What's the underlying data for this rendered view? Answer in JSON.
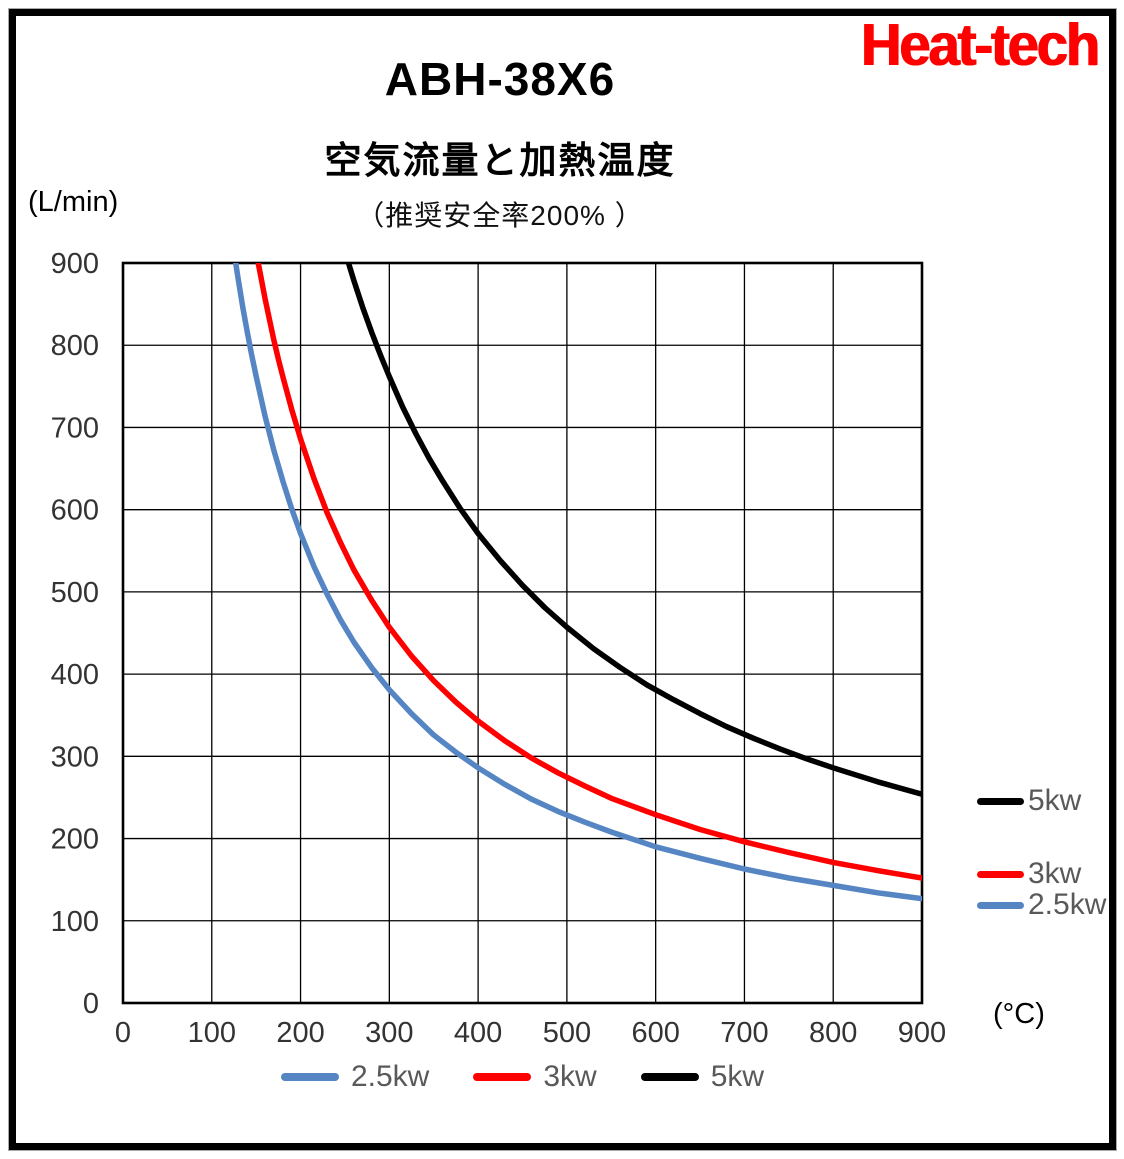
{
  "page": {
    "logo": "Heat-tech",
    "title": "ABH-38X6",
    "subtitle": "空気流量と加熱温度",
    "note": "（推奨安全率200% ）"
  },
  "chart_data": {
    "type": "line",
    "title": "ABH-38X6",
    "subtitle": "空気流量と加熱温度",
    "note": "（推奨安全率200% ）",
    "xlabel": "(°C)",
    "ylabel": "(L/min)",
    "xlim": [
      0,
      900
    ],
    "ylim": [
      0,
      900
    ],
    "x_ticks": [
      0,
      100,
      200,
      300,
      400,
      500,
      600,
      700,
      800,
      900
    ],
    "y_ticks": [
      0,
      100,
      200,
      300,
      400,
      500,
      600,
      700,
      800,
      900
    ],
    "grid": true,
    "grid_color": "#000000",
    "axis_label_color": "#333333",
    "legend_text_color": "#595959",
    "legend_right_order": [
      "5kw",
      "3kw",
      "2.5kw"
    ],
    "legend_bottom_order": [
      "2.5kw",
      "3kw",
      "5kw"
    ],
    "series": [
      {
        "name": "2.5kw",
        "color": "#5586C3",
        "relation": "flow_Lmin = 114250 / temperature_C",
        "points": [
          [
            127,
            900
          ],
          [
            130,
            879
          ],
          [
            135,
            846
          ],
          [
            140,
            816
          ],
          [
            145,
            788
          ],
          [
            150,
            762
          ],
          [
            160,
            714
          ],
          [
            170,
            672
          ],
          [
            180,
            635
          ],
          [
            190,
            601
          ],
          [
            200,
            571
          ],
          [
            215,
            531
          ],
          [
            230,
            497
          ],
          [
            245,
            466
          ],
          [
            260,
            439
          ],
          [
            280,
            408
          ],
          [
            300,
            381
          ],
          [
            325,
            352
          ],
          [
            350,
            326
          ],
          [
            375,
            305
          ],
          [
            400,
            286
          ],
          [
            430,
            266
          ],
          [
            460,
            248
          ],
          [
            490,
            233
          ],
          [
            520,
            220
          ],
          [
            550,
            208
          ],
          [
            600,
            190
          ],
          [
            650,
            176
          ],
          [
            700,
            163
          ],
          [
            750,
            152
          ],
          [
            800,
            143
          ],
          [
            850,
            134
          ],
          [
            900,
            127
          ]
        ]
      },
      {
        "name": "3kw",
        "color": "#FF0000",
        "relation": "flow_Lmin = 137100 / temperature_C",
        "points": [
          [
            152,
            902
          ],
          [
            155,
            885
          ],
          [
            160,
            857
          ],
          [
            165,
            831
          ],
          [
            170,
            806
          ],
          [
            175,
            783
          ],
          [
            180,
            762
          ],
          [
            190,
            722
          ],
          [
            200,
            686
          ],
          [
            215,
            638
          ],
          [
            230,
            596
          ],
          [
            245,
            560
          ],
          [
            260,
            527
          ],
          [
            280,
            490
          ],
          [
            300,
            457
          ],
          [
            325,
            422
          ],
          [
            350,
            392
          ],
          [
            375,
            366
          ],
          [
            400,
            343
          ],
          [
            430,
            319
          ],
          [
            460,
            298
          ],
          [
            490,
            280
          ],
          [
            520,
            264
          ],
          [
            550,
            249
          ],
          [
            600,
            229
          ],
          [
            650,
            211
          ],
          [
            700,
            196
          ],
          [
            750,
            183
          ],
          [
            800,
            171
          ],
          [
            850,
            161
          ],
          [
            900,
            152
          ]
        ]
      },
      {
        "name": "5kw",
        "color": "#000000",
        "relation": "flow_Lmin = 228500 / temperature_C",
        "points": [
          [
            254,
            900
          ],
          [
            260,
            879
          ],
          [
            270,
            846
          ],
          [
            280,
            816
          ],
          [
            290,
            788
          ],
          [
            300,
            762
          ],
          [
            315,
            725
          ],
          [
            330,
            692
          ],
          [
            345,
            662
          ],
          [
            360,
            635
          ],
          [
            380,
            601
          ],
          [
            400,
            571
          ],
          [
            425,
            538
          ],
          [
            450,
            508
          ],
          [
            475,
            481
          ],
          [
            500,
            457
          ],
          [
            530,
            431
          ],
          [
            560,
            408
          ],
          [
            590,
            387
          ],
          [
            620,
            369
          ],
          [
            650,
            352
          ],
          [
            680,
            336
          ],
          [
            710,
            322
          ],
          [
            740,
            309
          ],
          [
            770,
            297
          ],
          [
            800,
            286
          ],
          [
            850,
            269
          ],
          [
            900,
            254
          ]
        ]
      }
    ]
  }
}
